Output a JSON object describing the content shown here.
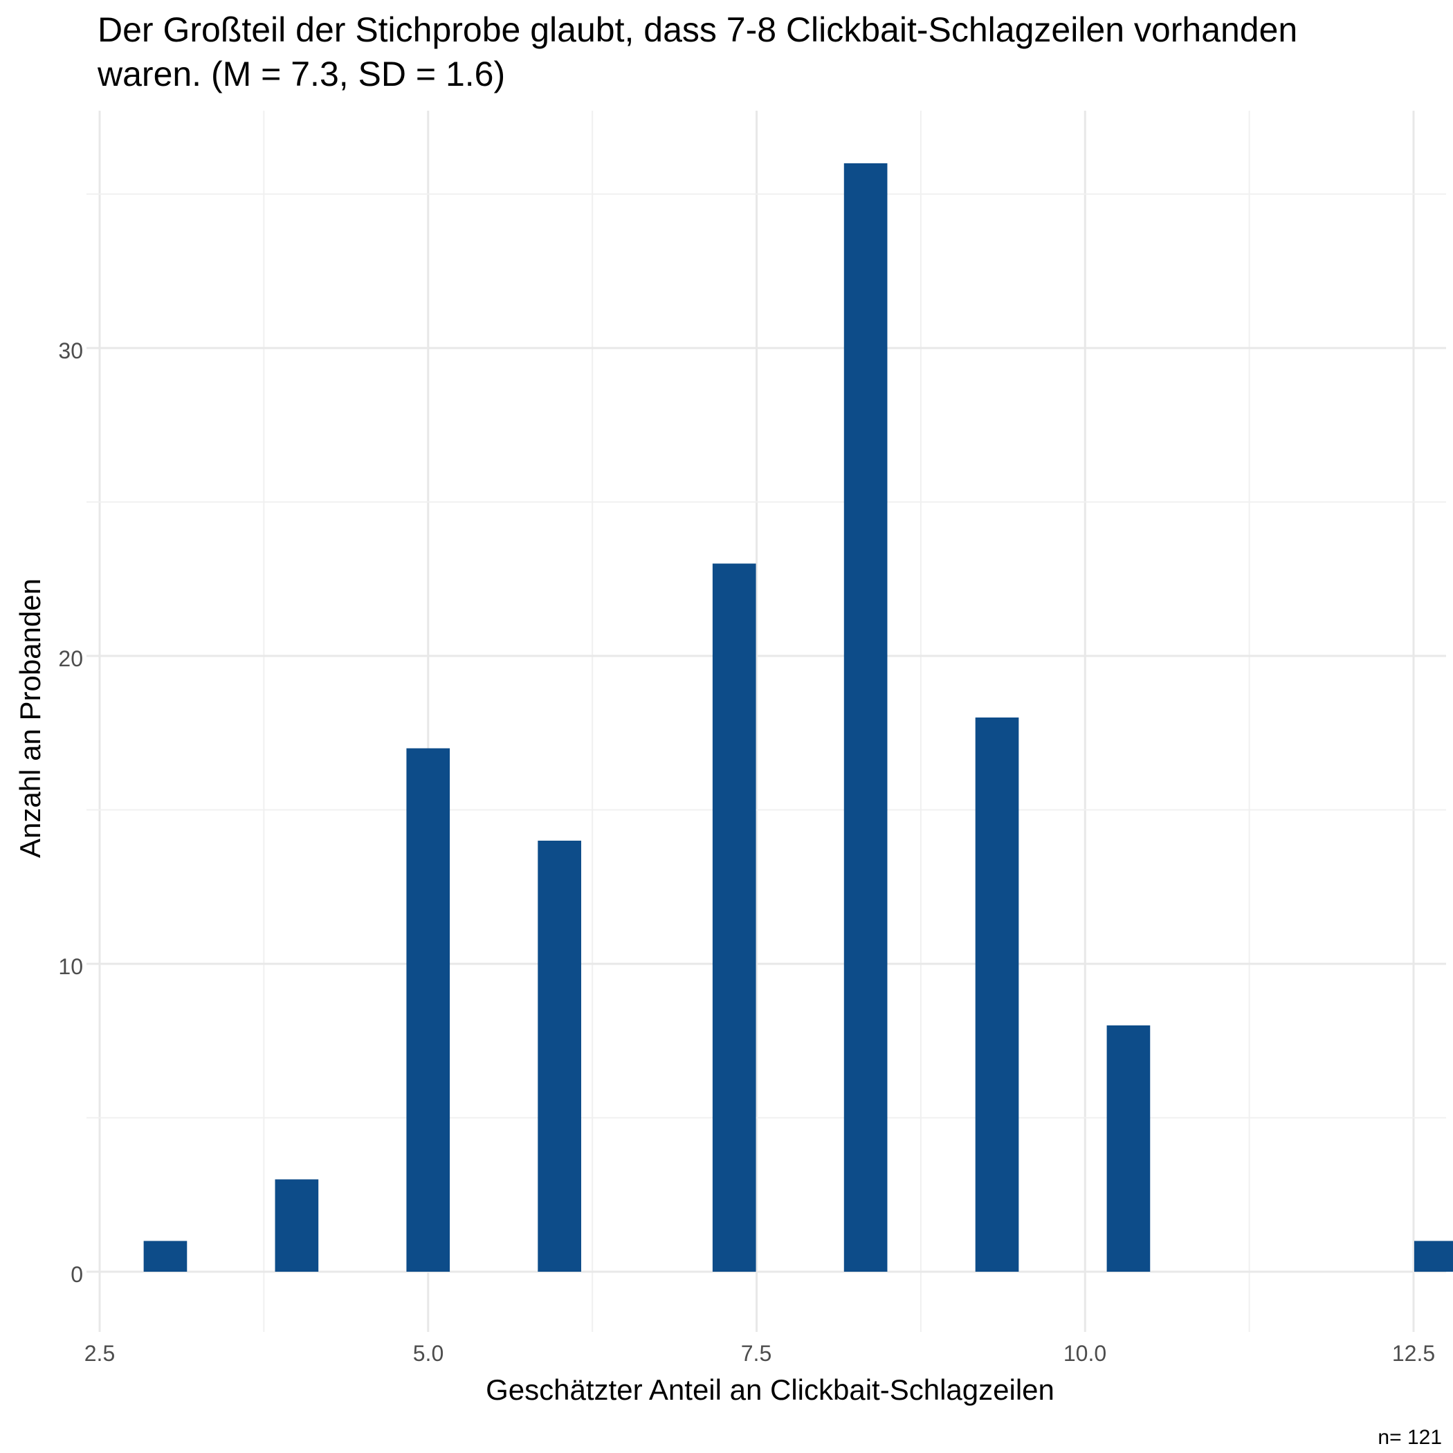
{
  "chart_data": {
    "type": "bar",
    "title_lines": [
      "Der Großteil der Stichprobe glaubt, dass 7-8 Clickbait-Schlagzeilen vorhanden",
      "waren. (M = 7.3, SD = 1.6)"
    ],
    "xlabel": "Geschätzter Anteil an Clickbait-Schlagzeilen",
    "ylabel": "Anzahl an Probanden",
    "caption": "n= 121",
    "x": [
      3,
      4,
      5,
      6,
      7.33,
      8.33,
      9.33,
      10.33,
      12.67
    ],
    "values": [
      1,
      3,
      17,
      14,
      23,
      36,
      18,
      8,
      1
    ],
    "bar_width": 0.33,
    "xlim": [
      2.5,
      12.5
    ],
    "ylim": [
      0,
      36
    ],
    "x_ticks": [
      "2.5",
      "5.0",
      "7.5",
      "10.0",
      "12.5"
    ],
    "y_ticks": [
      "0",
      "10",
      "20",
      "30"
    ],
    "grid": true,
    "bar_color": "#0d4c89"
  }
}
